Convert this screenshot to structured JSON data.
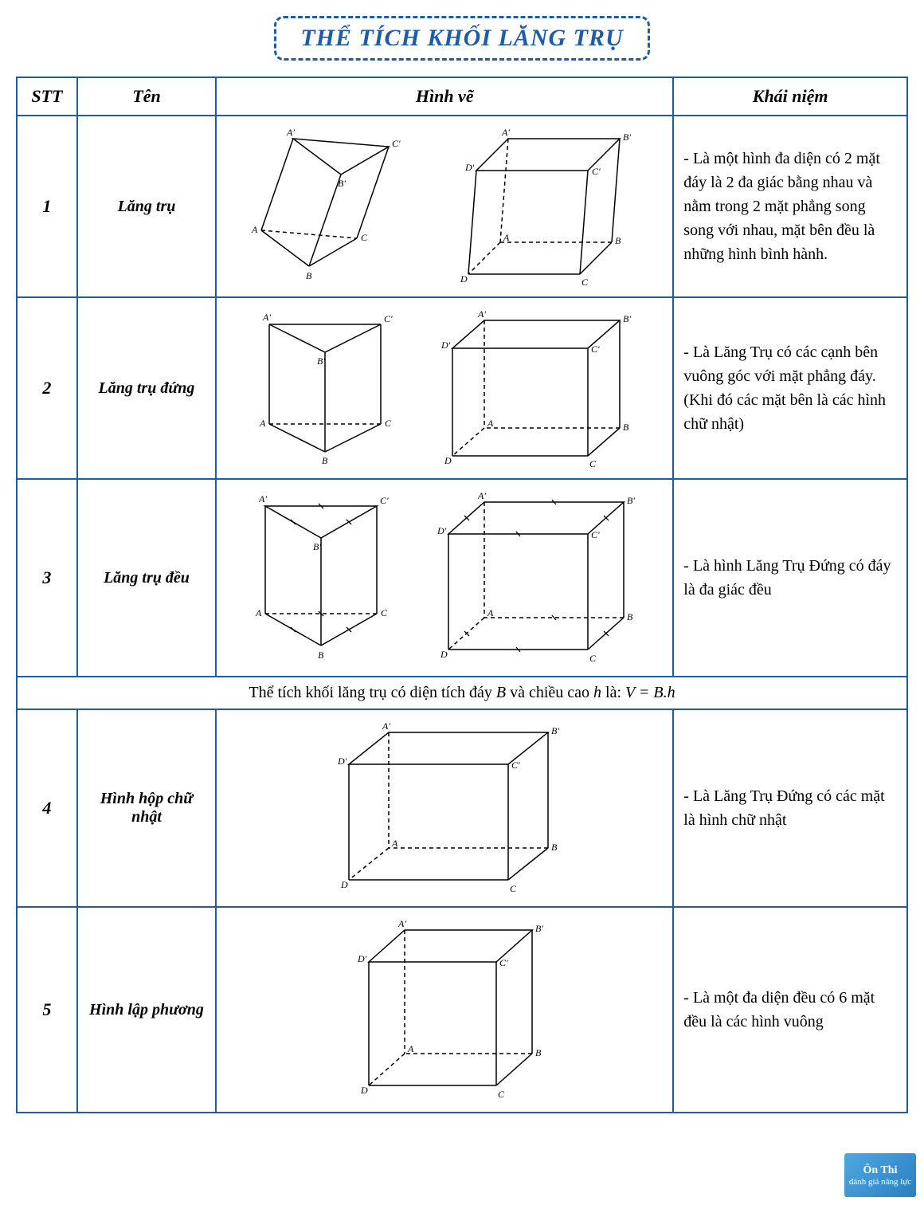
{
  "title": "THỂ TÍCH KHỐI LĂNG TRỤ",
  "headers": {
    "stt": "STT",
    "ten": "Tên",
    "hinh": "Hình vẽ",
    "kn": "Khái niệm"
  },
  "rows": [
    {
      "stt": "1",
      "ten": "Lăng trụ",
      "kn": "- Là một hình đa diện có 2 mặt đáy là 2 đa giác bằng nhau và nằm trong 2 mặt phẳng song song với nhau, mặt bên đều là những hình bình hành."
    },
    {
      "stt": "2",
      "ten": "Lăng trụ đứng",
      "kn": "- Là Lăng Trụ có các cạnh bên vuông góc với mặt phẳng đáy.\n(Khi đó các mặt bên là các hình chữ nhật)"
    },
    {
      "stt": "3",
      "ten": "Lăng trụ đều",
      "kn": "- Là hình Lăng Trụ Đứng có đáy là đa giác đều"
    },
    {
      "stt": "4",
      "ten": "Hình hộp chữ nhật",
      "kn": "- Là Lăng Trụ Đứng có các mặt là hình chữ nhật"
    },
    {
      "stt": "5",
      "ten": "Hình lập phương",
      "kn": "- Là một đa diện đều có 6 mặt đều là các hình vuông"
    }
  ],
  "formula": {
    "prefix": "Thể tích khối lăng trụ có diện tích đáy ",
    "B": "B",
    "mid": " và chiều cao ",
    "h": "h",
    "suffix": " là: ",
    "eq": "V = B.h"
  },
  "watermark": {
    "line1": "Ôn Thi",
    "line2": "đánh giá năng lực"
  },
  "labels": {
    "A": "A",
    "B": "B",
    "C": "C",
    "D": "D",
    "Ap": "A'",
    "Bp": "B'",
    "Cp": "C'",
    "Dp": "D'"
  },
  "colors": {
    "border": "#1e5ba8",
    "stroke": "#000000",
    "bg": "#ffffff"
  }
}
